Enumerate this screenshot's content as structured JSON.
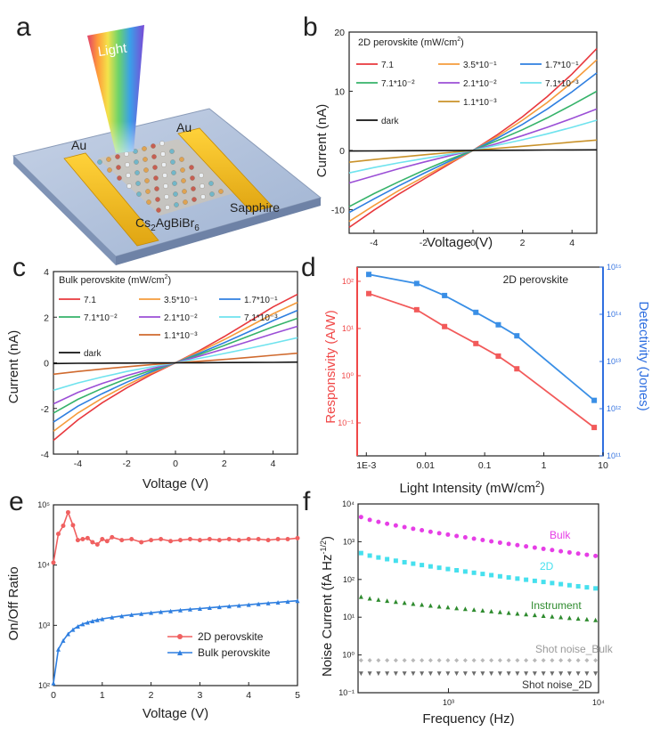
{
  "panels": {
    "a": {
      "letter": "a",
      "light_label": "Light",
      "electrode_left": "Au",
      "electrode_right": "Au",
      "material_label": "Cs2AgBiBr6",
      "substrate_label": "Sapphire"
    },
    "b": {
      "letter": "b"
    },
    "c": {
      "letter": "c"
    },
    "d": {
      "letter": "d"
    },
    "e": {
      "letter": "e"
    },
    "f": {
      "letter": "f"
    }
  },
  "chart_data": [
    {
      "id": "b",
      "type": "line",
      "legend_title": "2D perovskite (mW/cm²)",
      "xlabel": "Voltage (V)",
      "ylabel": "Current (nA)",
      "xlim": [
        -5,
        5
      ],
      "ylim": [
        -14,
        20
      ],
      "xticks": [
        -4,
        -2,
        0,
        2,
        4
      ],
      "yticks": [
        -10,
        0,
        10,
        20
      ],
      "tick_labels_x": [
        "-4",
        "-2",
        "0",
        "2",
        "4"
      ],
      "tick_labels_y": [
        "-10",
        "0",
        "10",
        "20"
      ],
      "x": [
        -5,
        -4,
        -3,
        -2,
        -1,
        0,
        1,
        2,
        3,
        4,
        5
      ],
      "series": [
        {
          "name": "7.1",
          "color": "#e8383d",
          "values": [
            -13,
            -10.1,
            -7.4,
            -4.9,
            -2.4,
            0,
            2.7,
            5.7,
            9.1,
            12.9,
            17.2
          ]
        },
        {
          "name": "3.5*10⁻¹",
          "color": "#f59b3b",
          "values": [
            -12,
            -9.3,
            -6.8,
            -4.5,
            -2.2,
            0,
            2.4,
            5.1,
            8.1,
            11.5,
            15.3
          ]
        },
        {
          "name": "1.7*10⁻¹",
          "color": "#2f7fe0",
          "values": [
            -10.5,
            -8.2,
            -6,
            -3.9,
            -1.9,
            0,
            2.1,
            4.4,
            7,
            9.9,
            13.1
          ]
        },
        {
          "name": "7.1*10⁻²",
          "color": "#36b36a",
          "values": [
            -9.5,
            -7.3,
            -5.3,
            -3.4,
            -1.6,
            0,
            1.7,
            3.5,
            5.5,
            7.7,
            10
          ]
        },
        {
          "name": "2.1*10⁻²",
          "color": "#9b4fd6",
          "values": [
            -5.5,
            -4.3,
            -3.1,
            -2,
            -0.95,
            0,
            1.2,
            2.5,
            3.9,
            5.4,
            7
          ]
        },
        {
          "name": "7.1*10⁻³",
          "color": "#6fe3ee",
          "values": [
            -3.8,
            -2.9,
            -2.1,
            -1.4,
            -0.7,
            0,
            0.9,
            1.8,
            2.8,
            3.9,
            5.1
          ]
        },
        {
          "name": "1.1*10⁻³",
          "color": "#c9922a",
          "values": [
            -2,
            -1.55,
            -1.15,
            -0.75,
            -0.37,
            0,
            0.35,
            0.7,
            1.05,
            1.4,
            1.75
          ]
        },
        {
          "name": "dark",
          "color": "#111111",
          "values": [
            -0.1,
            -0.08,
            -0.06,
            -0.04,
            -0.02,
            0,
            0.02,
            0.04,
            0.06,
            0.08,
            0.1
          ]
        }
      ]
    },
    {
      "id": "c",
      "type": "line",
      "legend_title": "Bulk perovskite (mW/cm²)",
      "xlabel": "Voltage (V)",
      "ylabel": "Current (nA)",
      "xlim": [
        -5,
        5
      ],
      "ylim": [
        -4,
        4
      ],
      "xticks": [
        -4,
        -2,
        0,
        2,
        4
      ],
      "yticks": [
        -4,
        -2,
        0,
        2,
        4
      ],
      "tick_labels_x": [
        "-4",
        "-2",
        "0",
        "2",
        "4"
      ],
      "tick_labels_y": [
        "-4",
        "-2",
        "0",
        "2",
        "4"
      ],
      "x": [
        -5,
        -4,
        -3,
        -2,
        -1,
        0,
        1,
        2,
        3,
        4,
        5
      ],
      "series": [
        {
          "name": "7.1",
          "color": "#e8383d",
          "values": [
            -3.4,
            -2.5,
            -1.75,
            -1.1,
            -0.52,
            0,
            0.55,
            1.15,
            1.8,
            2.45,
            3
          ]
        },
        {
          "name": "3.5*10⁻¹",
          "color": "#f59b3b",
          "values": [
            -3,
            -2.2,
            -1.55,
            -0.98,
            -0.46,
            0,
            0.5,
            1.02,
            1.58,
            2.15,
            2.65
          ]
        },
        {
          "name": "1.7*10⁻¹",
          "color": "#2f7fe0",
          "values": [
            -2.6,
            -1.9,
            -1.35,
            -0.85,
            -0.4,
            0,
            0.43,
            0.88,
            1.36,
            1.85,
            2.3
          ]
        },
        {
          "name": "7.1*10⁻²",
          "color": "#36b36a",
          "values": [
            -2.2,
            -1.6,
            -1.12,
            -0.7,
            -0.33,
            0,
            0.37,
            0.76,
            1.17,
            1.58,
            1.95
          ]
        },
        {
          "name": "2.1*10⁻²",
          "color": "#9b4fd6",
          "values": [
            -1.8,
            -1.3,
            -0.9,
            -0.56,
            -0.26,
            0,
            0.3,
            0.61,
            0.94,
            1.28,
            1.6
          ]
        },
        {
          "name": "7.1*10⁻³",
          "color": "#6fe3ee",
          "values": [
            -1.2,
            -0.88,
            -0.62,
            -0.38,
            -0.18,
            0,
            0.2,
            0.41,
            0.63,
            0.86,
            1.1
          ]
        },
        {
          "name": "1.1*10⁻³",
          "color": "#d06a2e",
          "values": [
            -0.5,
            -0.38,
            -0.27,
            -0.17,
            -0.08,
            0,
            0.07,
            0.15,
            0.24,
            0.33,
            0.42
          ]
        },
        {
          "name": "dark",
          "color": "#111111",
          "values": [
            -0.03,
            -0.02,
            -0.015,
            -0.01,
            -0.005,
            0,
            0.005,
            0.01,
            0.015,
            0.02,
            0.03
          ]
        }
      ]
    },
    {
      "id": "d",
      "type": "line",
      "annotation": "2D perovskite",
      "xlabel": "Light Intensity (mW/cm²)",
      "ylabel_left": "Responsivity (A/W)",
      "ylabel_right": "Detectivity (Jones)",
      "xscale": "log",
      "xlim": [
        0.0007,
        10
      ],
      "ylim_left": [
        0.02,
        200
      ],
      "ylim_right": [
        100000000000,
        1000000000000000
      ],
      "tick_labels_x": [
        "1E-3",
        "0.01",
        "0.1",
        "1",
        "10"
      ],
      "tick_labels_left": [
        "10⁻¹",
        "10⁰",
        "10¹",
        "10²"
      ],
      "tick_labels_right": [
        "10¹¹",
        "10¹²",
        "10¹³",
        "10¹⁴",
        "10¹⁵"
      ],
      "x": [
        0.0011,
        0.0071,
        0.021,
        0.071,
        0.17,
        0.35,
        7.1
      ],
      "series": [
        {
          "name": "Responsivity",
          "axis": "left",
          "color": "#f25a5a",
          "marker": "square",
          "values": [
            55,
            25,
            11,
            4.8,
            2.6,
            1.4,
            0.08
          ]
        },
        {
          "name": "Detectivity",
          "axis": "right",
          "color": "#3a8fe6",
          "marker": "square",
          "values": [
            700000000000000,
            450000000000000,
            250000000000000,
            110000000000000,
            60000000000000,
            35000000000000,
            1500000000000
          ]
        }
      ]
    },
    {
      "id": "e",
      "type": "line",
      "xlabel": "Voltage (V)",
      "ylabel": "On/Off Ratio",
      "yscale": "log",
      "xlim": [
        0,
        5
      ],
      "ylim": [
        100,
        100000
      ],
      "tick_labels_x": [
        "0",
        "1",
        "2",
        "3",
        "4",
        "5"
      ],
      "tick_labels_y": [
        "10²",
        "10³",
        "10⁴",
        "10⁵"
      ],
      "series": [
        {
          "name": "2D perovskite",
          "color": "#f06060",
          "marker": "circle",
          "x": [
            0,
            0.1,
            0.2,
            0.3,
            0.4,
            0.5,
            0.6,
            0.7,
            0.8,
            0.9,
            1.0,
            1.1,
            1.2,
            1.4,
            1.6,
            1.8,
            2.0,
            2.2,
            2.4,
            2.6,
            2.8,
            3.0,
            3.2,
            3.4,
            3.6,
            3.8,
            4.0,
            4.2,
            4.4,
            4.6,
            4.8,
            5.0
          ],
          "values": [
            11000,
            33000,
            45000,
            75000,
            46000,
            26000,
            27000,
            28000,
            24000,
            22000,
            27000,
            25000,
            29000,
            26000,
            27000,
            24000,
            26000,
            27000,
            25000,
            26000,
            27000,
            26000,
            27000,
            26000,
            27000,
            26000,
            27000,
            27000,
            26000,
            27000,
            27000,
            28000
          ]
        },
        {
          "name": "Bulk perovskite",
          "color": "#2f7fe0",
          "marker": "triangle",
          "x": [
            0,
            0.1,
            0.2,
            0.3,
            0.4,
            0.5,
            0.6,
            0.7,
            0.8,
            0.9,
            1.0,
            1.2,
            1.4,
            1.6,
            1.8,
            2.0,
            2.2,
            2.4,
            2.6,
            2.8,
            3.0,
            3.2,
            3.4,
            3.6,
            3.8,
            4.0,
            4.2,
            4.4,
            4.6,
            4.8,
            5.0
          ],
          "values": [
            110,
            400,
            560,
            720,
            850,
            960,
            1050,
            1120,
            1180,
            1230,
            1280,
            1360,
            1430,
            1500,
            1560,
            1620,
            1680,
            1730,
            1790,
            1850,
            1900,
            1960,
            2020,
            2080,
            2140,
            2200,
            2270,
            2340,
            2410,
            2480,
            2560
          ]
        }
      ]
    },
    {
      "id": "f",
      "type": "scatter",
      "xlabel": "Frequency (Hz)",
      "ylabel": "Noise Current (fA Hz⁻¹ᐟ²)",
      "xscale": "log",
      "yscale": "log",
      "xlim": [
        250,
        10000
      ],
      "ylim": [
        0.1,
        10000
      ],
      "tick_labels_x": [
        "10³",
        "10⁴"
      ],
      "tick_labels_y": [
        "10⁻¹",
        "10⁰",
        "10¹",
        "10²",
        "10³",
        "10⁴"
      ],
      "series": [
        {
          "name": "Bulk",
          "color": "#e63ee6",
          "marker": "circle",
          "start": 4500,
          "end": 420
        },
        {
          "name": "2D",
          "color": "#46e0ee",
          "marker": "square",
          "start": 500,
          "end": 58
        },
        {
          "name": "Instrument",
          "color": "#2e8b2e",
          "marker": "triangle",
          "start": 35,
          "end": 8.5
        },
        {
          "name": "Shot noise_Bulk",
          "color": "#b8b8b8",
          "marker": "diamond",
          "start": 0.72,
          "end": 0.72
        },
        {
          "name": "Shot noise_2D",
          "color": "#6d6d6d",
          "marker": "triangle-down",
          "start": 0.32,
          "end": 0.32
        }
      ]
    }
  ]
}
